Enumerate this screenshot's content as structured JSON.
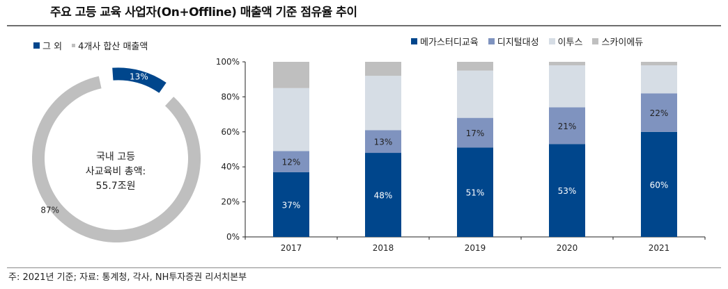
{
  "header": {
    "title": "주요 고등 교육 사업자(On+Offline) 매출액 기준 점유율 추이"
  },
  "footer": {
    "note": "주: 2021년 기준; 자료: 통계청, 각사, NH투자증권 리서치본부"
  },
  "donut": {
    "legend": [
      {
        "label": "그 외",
        "color": "#00468c"
      },
      {
        "label": "4개사 합산 매출액",
        "color": "#bfbfbf"
      }
    ],
    "center_lines": [
      "국내 고등",
      "사교육비 총액:",
      "55.7조원"
    ]
  },
  "colors": {
    "megastudy": "#00468c",
    "digital": "#7f93bf",
    "etoos": "#d6dde5",
    "skyedu": "#bfbfbf",
    "axis": "#222222"
  },
  "chart_data": [
    {
      "type": "pie",
      "variant": "donut",
      "slices": [
        {
          "label": "그 외",
          "value": 13,
          "display": "13%"
        },
        {
          "label": "4개사 합산 매출액",
          "value": 87,
          "display": "87%"
        }
      ],
      "center_text": "국내 고등 사교육비 총액: 55.7조원"
    },
    {
      "type": "bar",
      "stacked": true,
      "categories": [
        "2017",
        "2018",
        "2019",
        "2020",
        "2021"
      ],
      "ylim": [
        0,
        100
      ],
      "ytick_labels": [
        "0%",
        "20%",
        "40%",
        "60%",
        "80%",
        "100%"
      ],
      "yticks": [
        0,
        20,
        40,
        60,
        80,
        100
      ],
      "legend_position": "top-right",
      "grid": false,
      "series": [
        {
          "name": "메가스터디교육",
          "values": [
            37,
            48,
            51,
            53,
            60
          ],
          "labels": [
            "37%",
            "48%",
            "51%",
            "53%",
            "60%"
          ]
        },
        {
          "name": "디지털대성",
          "values": [
            12,
            13,
            17,
            21,
            22
          ],
          "labels": [
            "12%",
            "13%",
            "17%",
            "21%",
            "22%"
          ]
        },
        {
          "name": "이투스",
          "values": [
            36,
            31,
            27,
            24,
            16
          ],
          "labels": [
            "",
            "",
            "",
            "",
            ""
          ]
        },
        {
          "name": "스카이에듀",
          "values": [
            15,
            8,
            5,
            2,
            2
          ],
          "labels": [
            "",
            "",
            "",
            "",
            ""
          ]
        }
      ]
    }
  ]
}
